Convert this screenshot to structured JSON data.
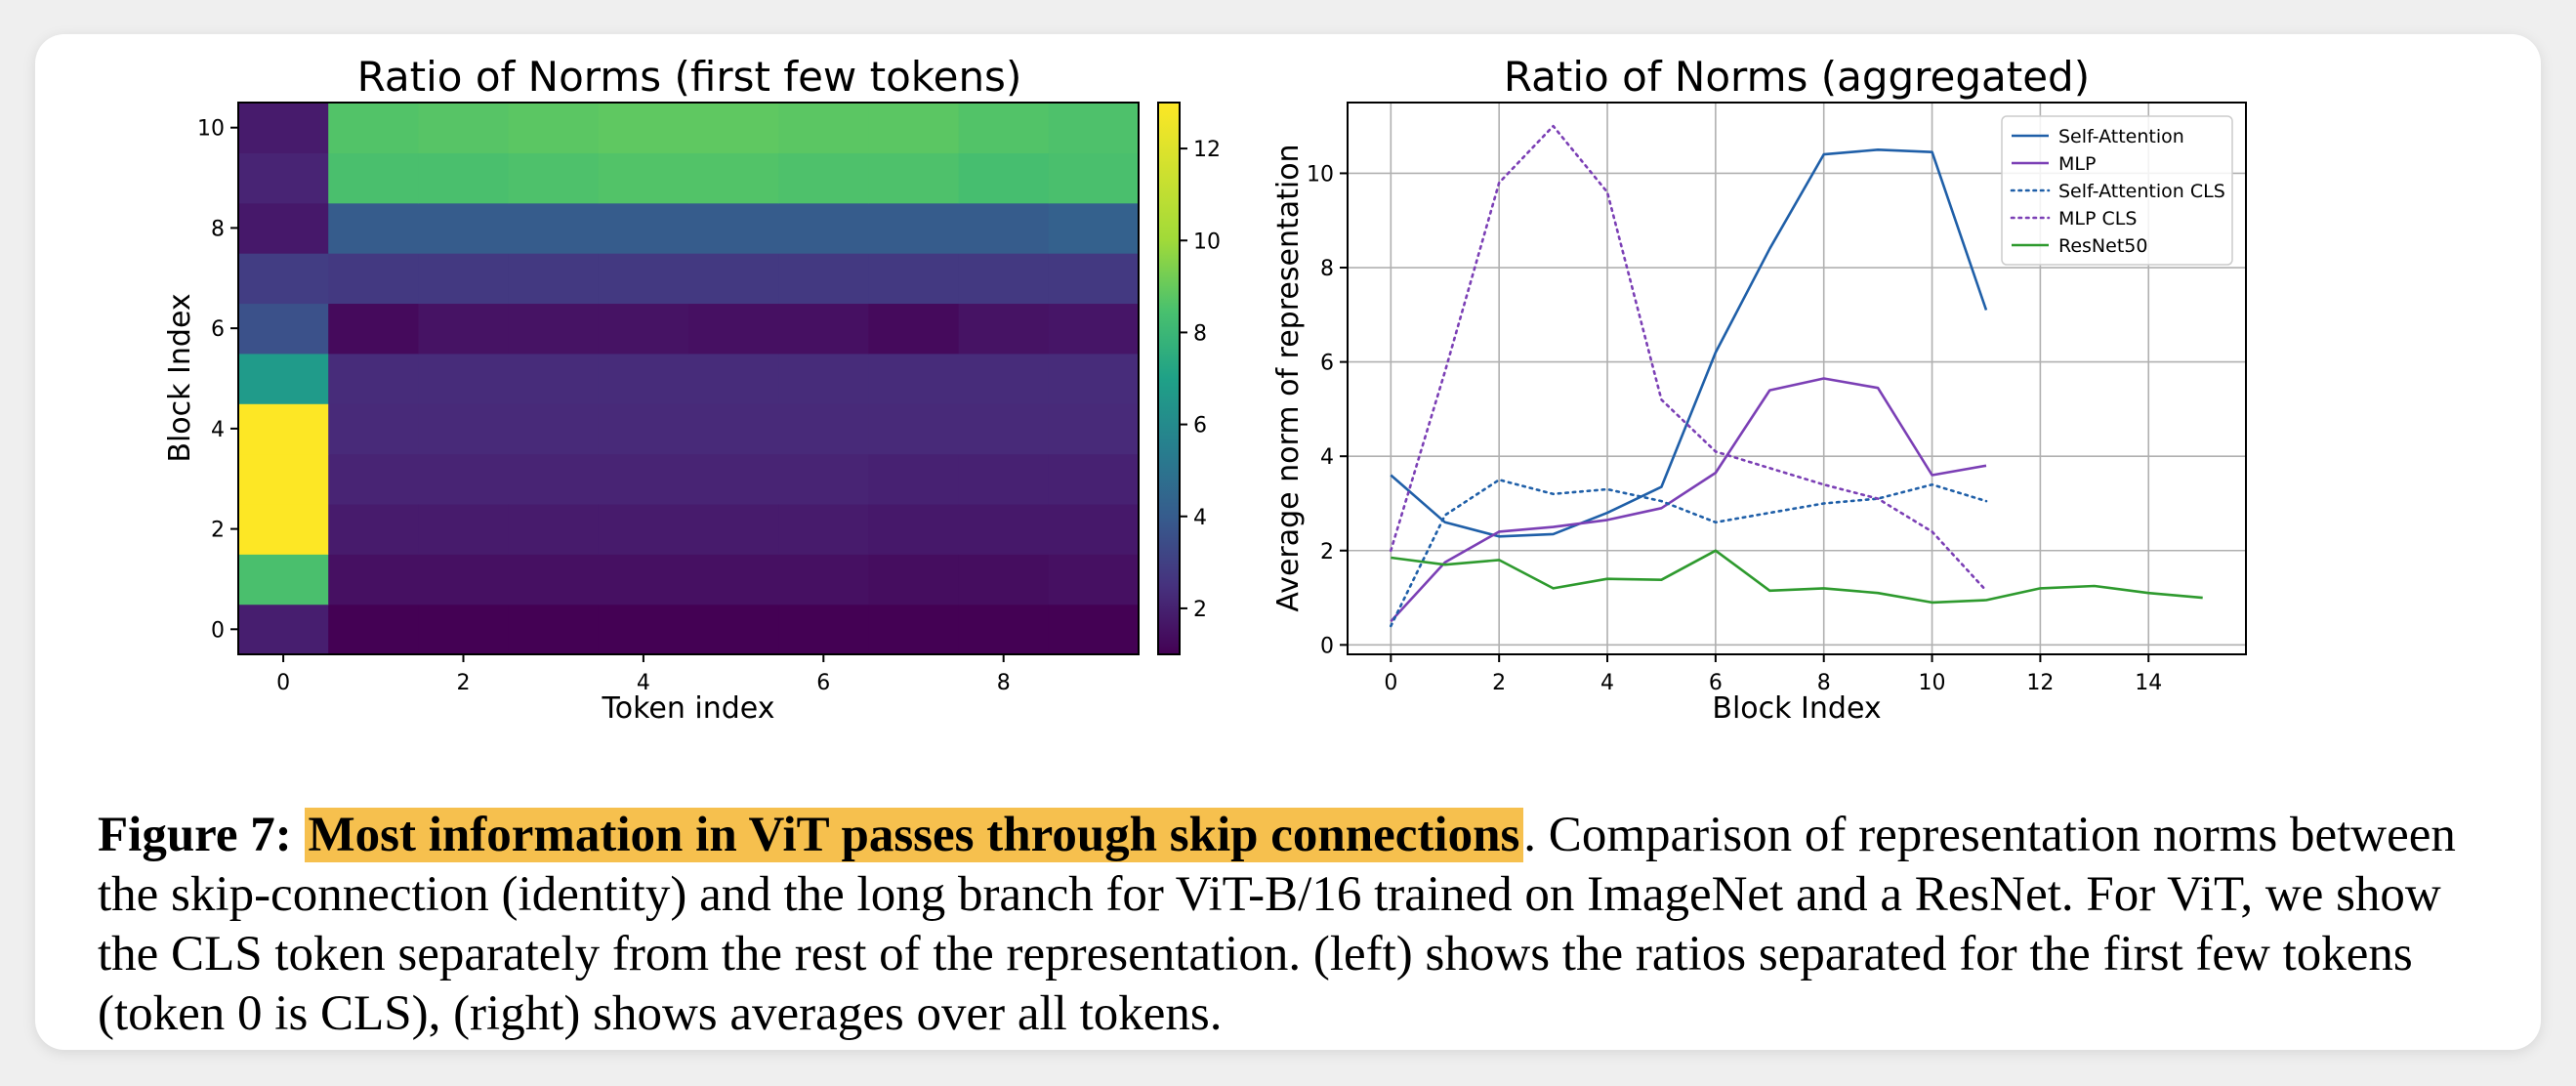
{
  "figure": {
    "left_title": "Ratio of Norms (first few tokens)",
    "right_title": "Ratio of Norms (aggregated)",
    "caption": {
      "label": "Figure 7:",
      "highlight": "Most information in ViT passes through skip connections",
      "text": ". Comparison of representation norms between the skip-connection (identity) and the long branch for ViT-B/16 trained on ImageNet and a ResNet. For ViT, we show the CLS token separately from the rest of the representation. (left) shows the ratios separated for the first few tokens (token 0 is CLS), (right) shows averages over all tokens."
    },
    "colors": {
      "highlight": "#f6c04e",
      "card": "#ffffff",
      "background": "#efefef"
    }
  },
  "chart_data": [
    {
      "type": "heatmap",
      "title": "Ratio of Norms (first few tokens)",
      "xlabel": "Token index",
      "ylabel": "Block Index",
      "x_ticks": [
        0,
        2,
        4,
        6,
        8
      ],
      "y_ticks": [
        0,
        2,
        4,
        6,
        8,
        10
      ],
      "colorbar_ticks": [
        2,
        4,
        6,
        8,
        10,
        12
      ],
      "colorbar_range": [
        1,
        13
      ],
      "colormap": "viridis",
      "x": [
        0,
        1,
        2,
        3,
        4,
        5,
        6,
        7,
        8,
        9
      ],
      "y": [
        0,
        1,
        2,
        3,
        4,
        5,
        6,
        7,
        8,
        9,
        10
      ],
      "values": [
        [
          2.0,
          1.0,
          1.0,
          1.0,
          1.0,
          1.0,
          1.0,
          1.0,
          1.0,
          1.0
        ],
        [
          9.5,
          1.5,
          1.5,
          1.5,
          1.5,
          1.5,
          1.5,
          1.4,
          1.4,
          1.5
        ],
        [
          13.0,
          1.9,
          1.9,
          1.9,
          1.9,
          1.9,
          1.9,
          1.8,
          1.8,
          1.8
        ],
        [
          13.0,
          2.2,
          2.2,
          2.2,
          2.2,
          2.2,
          2.2,
          2.1,
          2.1,
          2.1
        ],
        [
          13.0,
          2.4,
          2.4,
          2.4,
          2.4,
          2.4,
          2.4,
          2.4,
          2.4,
          2.4
        ],
        [
          7.5,
          2.5,
          2.5,
          2.5,
          2.5,
          2.5,
          2.5,
          2.5,
          2.5,
          2.5
        ],
        [
          4.0,
          1.3,
          1.6,
          1.6,
          1.6,
          1.5,
          1.5,
          1.3,
          1.6,
          1.7
        ],
        [
          3.2,
          3.0,
          3.0,
          3.0,
          3.0,
          3.0,
          3.0,
          3.0,
          3.0,
          3.0
        ],
        [
          1.8,
          4.5,
          4.5,
          4.5,
          4.5,
          4.5,
          4.5,
          4.5,
          4.5,
          4.7
        ],
        [
          2.2,
          9.5,
          9.5,
          9.6,
          9.7,
          9.7,
          9.6,
          9.6,
          9.4,
          9.5
        ],
        [
          1.9,
          9.7,
          9.8,
          9.9,
          10.0,
          10.0,
          9.9,
          9.9,
          9.7,
          9.6
        ]
      ]
    },
    {
      "type": "line",
      "title": "Ratio of Norms (aggregated)",
      "xlabel": "Block Index",
      "ylabel": "Average norm of representation",
      "xlim": [
        -0.8,
        15.8
      ],
      "ylim": [
        -0.2,
        11.5
      ],
      "x_ticks": [
        0,
        2,
        4,
        6,
        8,
        10,
        12,
        14
      ],
      "y_ticks": [
        0,
        2,
        4,
        6,
        8,
        10
      ],
      "grid": true,
      "legend_position": "top-right",
      "series": [
        {
          "name": "Self-Attention",
          "color": "#1f5fa8",
          "dash": "solid",
          "x": [
            0,
            1,
            2,
            3,
            4,
            5,
            6,
            7,
            8,
            9,
            10,
            11
          ],
          "values": [
            3.6,
            2.6,
            2.3,
            2.35,
            2.8,
            3.35,
            6.2,
            8.4,
            10.4,
            10.5,
            10.45,
            7.1
          ]
        },
        {
          "name": "MLP",
          "color": "#7b3fb5",
          "dash": "solid",
          "x": [
            0,
            1,
            2,
            3,
            4,
            5,
            6,
            7,
            8,
            9,
            10,
            11
          ],
          "values": [
            0.5,
            1.75,
            2.4,
            2.5,
            2.65,
            2.9,
            3.65,
            5.4,
            5.65,
            5.45,
            3.6,
            3.8
          ]
        },
        {
          "name": "Self-Attention CLS",
          "color": "#1f5fa8",
          "dash": "dotted",
          "x": [
            0,
            1,
            2,
            3,
            4,
            5,
            6,
            7,
            8,
            9,
            10,
            11
          ],
          "values": [
            0.4,
            2.75,
            3.5,
            3.2,
            3.3,
            3.05,
            2.6,
            2.8,
            3.0,
            3.1,
            3.4,
            3.05
          ]
        },
        {
          "name": "MLP CLS",
          "color": "#7b3fb5",
          "dash": "dotted",
          "x": [
            0,
            1,
            2,
            3,
            4,
            5,
            6,
            7,
            8,
            9,
            10,
            11
          ],
          "values": [
            2.0,
            5.8,
            9.8,
            11.0,
            9.6,
            5.2,
            4.1,
            3.75,
            3.4,
            3.1,
            2.4,
            1.15
          ]
        },
        {
          "name": "ResNet50",
          "color": "#2e9a2e",
          "dash": "solid",
          "x": [
            0,
            1,
            2,
            3,
            4,
            5,
            6,
            7,
            8,
            9,
            10,
            11,
            12,
            13,
            14,
            15
          ],
          "values": [
            1.85,
            1.7,
            1.8,
            1.2,
            1.4,
            1.38,
            2.0,
            1.15,
            1.2,
            1.1,
            0.9,
            0.95,
            1.2,
            1.25,
            1.1,
            1.0
          ]
        }
      ]
    }
  ]
}
